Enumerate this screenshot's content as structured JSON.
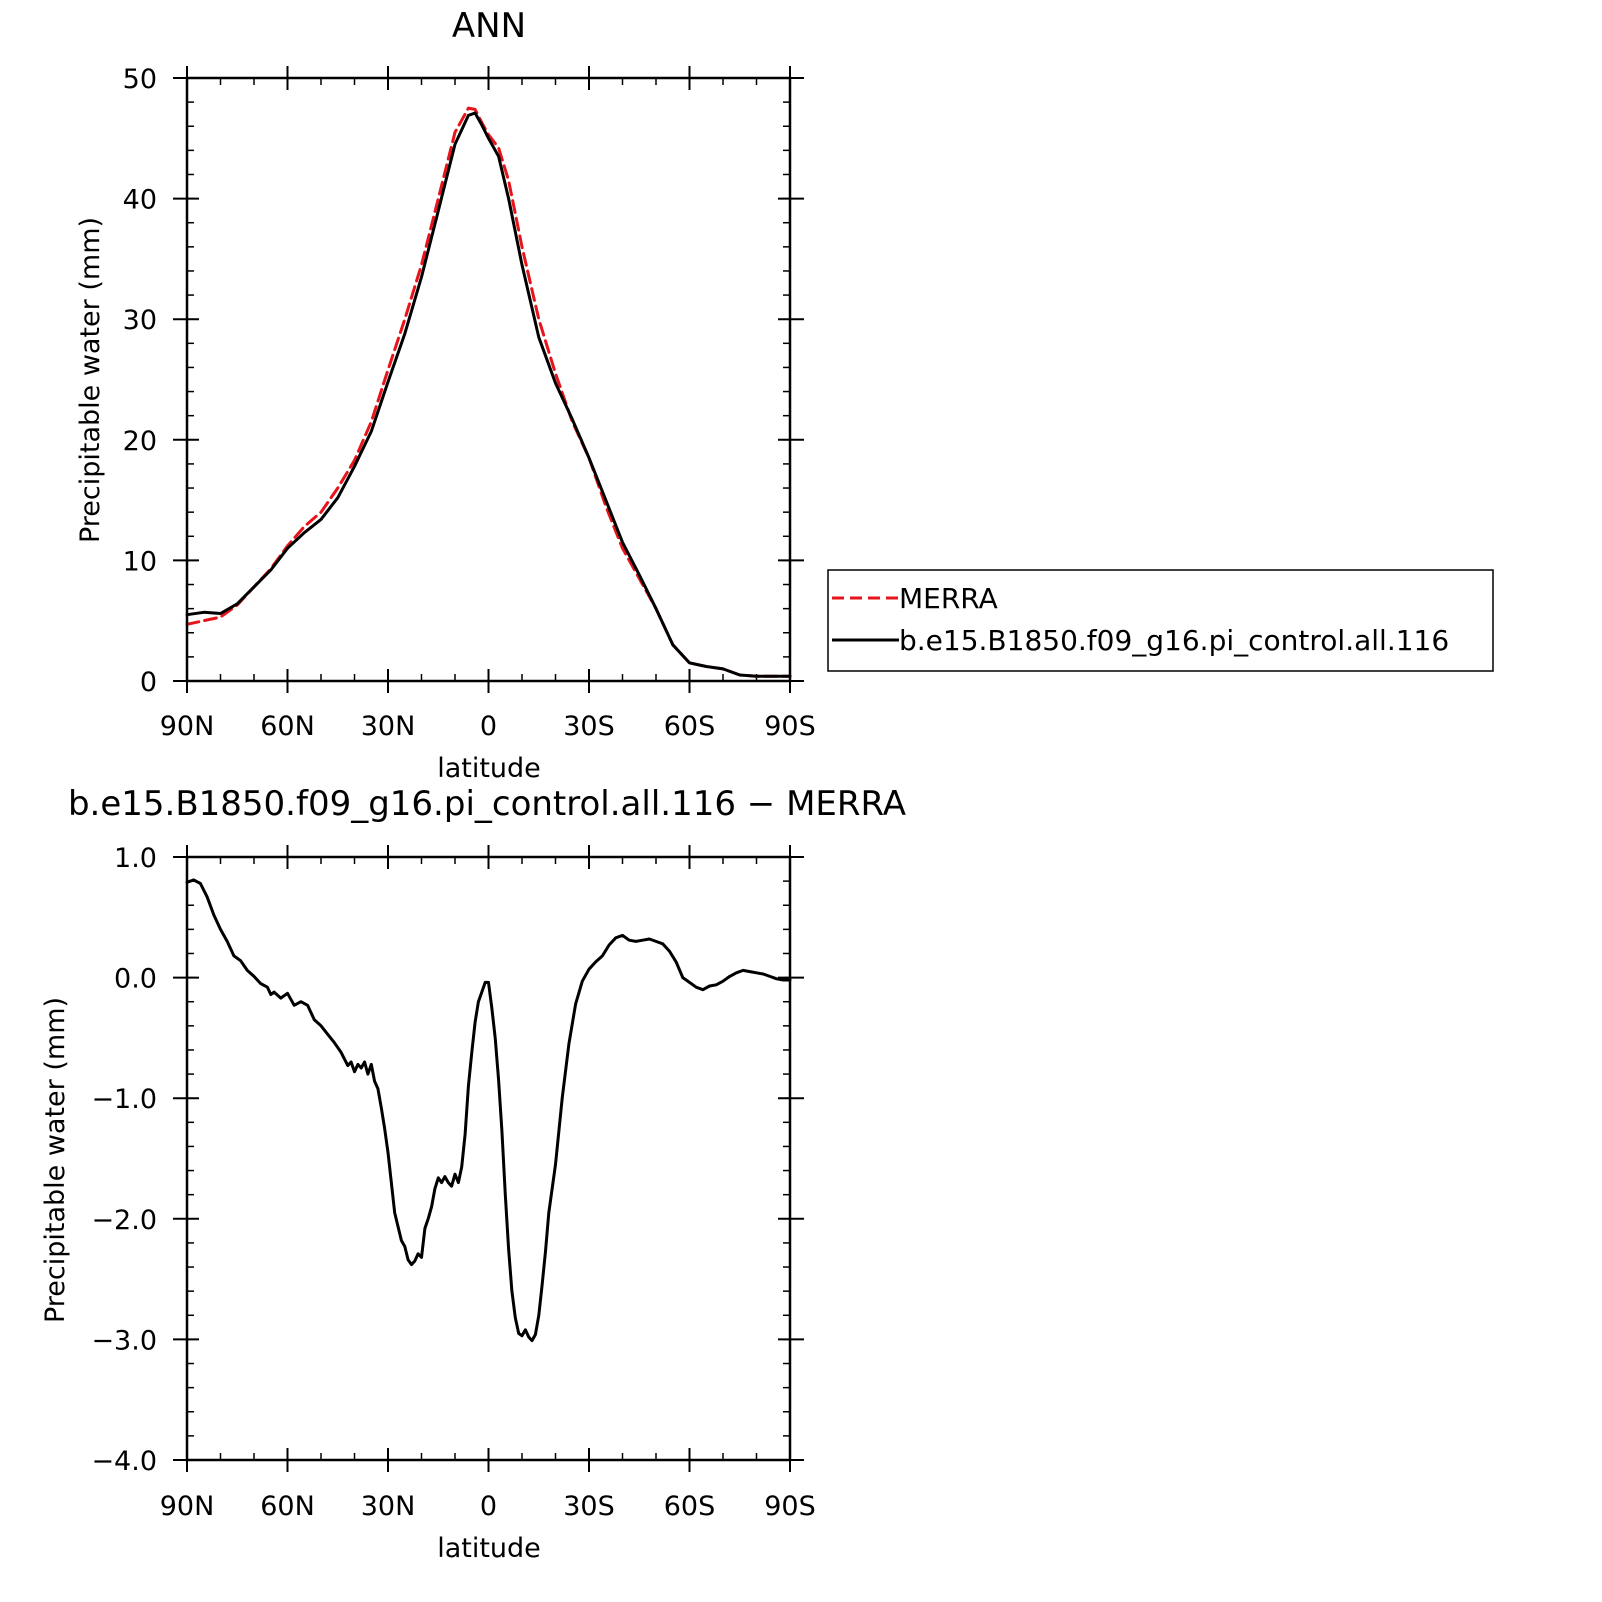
{
  "chart_data": [
    {
      "type": "line",
      "title": "ANN",
      "xlabel": "latitude",
      "ylabel": "Precipitable water (mm)",
      "xlim": [
        90,
        -90
      ],
      "ylim": [
        0,
        50
      ],
      "x_ticks": [
        90,
        60,
        30,
        0,
        -30,
        -60,
        -90
      ],
      "x_tick_labels": [
        "90N",
        "60N",
        "30N",
        "0",
        "30S",
        "60S",
        "90S"
      ],
      "y_ticks": [
        0,
        10,
        20,
        30,
        40,
        50
      ],
      "y_tick_labels": [
        "0",
        "10",
        "20",
        "30",
        "40",
        "50"
      ],
      "legend": {
        "position": "right",
        "entries": [
          "MERRA",
          "b.e15.B1850.f09_g16.pi_control.all.116"
        ]
      },
      "series": [
        {
          "name": "MERRA",
          "color": "#e8141b",
          "style": "dashed",
          "x": [
            90,
            85,
            80,
            75,
            70,
            65,
            60,
            55,
            50,
            45,
            40,
            35,
            30,
            25,
            20,
            15,
            10,
            6,
            4,
            2,
            0,
            -3,
            -6,
            -10,
            -15,
            -20,
            -25,
            -30,
            -35,
            -40,
            -45,
            -50,
            -55,
            -60,
            -65,
            -70,
            -75,
            -80,
            -85,
            -90
          ],
          "y": [
            4.7,
            5.0,
            5.3,
            6.3,
            7.8,
            9.3,
            11.2,
            12.8,
            14.0,
            16.0,
            18.3,
            21.5,
            25.8,
            30.0,
            34.5,
            40.0,
            45.5,
            47.5,
            47.4,
            46.3,
            45.3,
            44.2,
            41.5,
            36.0,
            30.0,
            25.5,
            21.5,
            18.5,
            14.5,
            11.0,
            8.5,
            6.0,
            3.0,
            1.5,
            1.2,
            1.0,
            0.5,
            0.4,
            0.4,
            0.4
          ]
        },
        {
          "name": "b.e15.B1850.f09_g16.pi_control.all.116",
          "color": "#000000",
          "style": "solid",
          "x": [
            90,
            85,
            80,
            75,
            70,
            65,
            60,
            55,
            50,
            45,
            40,
            35,
            30,
            25,
            20,
            15,
            10,
            6,
            4,
            2,
            0,
            -3,
            -6,
            -10,
            -15,
            -20,
            -25,
            -30,
            -35,
            -40,
            -45,
            -50,
            -55,
            -60,
            -65,
            -70,
            -75,
            -80,
            -85,
            -90
          ],
          "y": [
            5.5,
            5.7,
            5.6,
            6.4,
            7.8,
            9.2,
            11.0,
            12.3,
            13.4,
            15.2,
            17.8,
            20.7,
            24.8,
            28.8,
            33.5,
            39.0,
            44.5,
            46.9,
            47.1,
            46.1,
            45.0,
            43.5,
            40.0,
            34.5,
            28.5,
            24.7,
            21.7,
            18.5,
            15.0,
            11.5,
            8.8,
            6.0,
            3.0,
            1.5,
            1.2,
            1.0,
            0.5,
            0.4,
            0.4,
            0.4
          ]
        }
      ]
    },
    {
      "type": "line",
      "title": "b.e15.B1850.f09_g16.pi_control.all.116 − MERRA",
      "xlabel": "latitude",
      "ylabel": "Precipitable water (mm)",
      "xlim": [
        90,
        -90
      ],
      "ylim": [
        -4.0,
        1.0
      ],
      "x_ticks": [
        90,
        60,
        30,
        0,
        -30,
        -60,
        -90
      ],
      "x_tick_labels": [
        "90N",
        "60N",
        "30N",
        "0",
        "30S",
        "60S",
        "90S"
      ],
      "y_ticks": [
        1.0,
        0.0,
        -1.0,
        -2.0,
        -3.0,
        -4.0
      ],
      "y_tick_labels": [
        "1.0",
        "0.0",
        "−1.0",
        "−2.0",
        "−3.0",
        "−4.0"
      ],
      "series": [
        {
          "color": "#000000",
          "style": "solid",
          "x": [
            90,
            88,
            86,
            84,
            82,
            80,
            78,
            76,
            74,
            72,
            70,
            68,
            66,
            65,
            64,
            62,
            60,
            58,
            56,
            54,
            52,
            50,
            48,
            46,
            44,
            42,
            41,
            40,
            39,
            38,
            37,
            36,
            35,
            34,
            33,
            32,
            31,
            30,
            28,
            26,
            25,
            24,
            23,
            22,
            21,
            20,
            19,
            18,
            17,
            16,
            15,
            14,
            13,
            12,
            11,
            10,
            9,
            8,
            7,
            6,
            5,
            4,
            3,
            2,
            1,
            0,
            -1,
            -2,
            -3,
            -4,
            -5,
            -6,
            -7,
            -8,
            -9,
            -10,
            -11,
            -12,
            -13,
            -14,
            -15,
            -16,
            -17,
            -18,
            -20,
            -22,
            -24,
            -26,
            -28,
            -30,
            -32,
            -34,
            -36,
            -38,
            -40,
            -42,
            -44,
            -46,
            -48,
            -50,
            -52,
            -54,
            -56,
            -58,
            -60,
            -62,
            -64,
            -66,
            -68,
            -70,
            -72,
            -74,
            -76,
            -78,
            -80,
            -82,
            -84,
            -86,
            -88,
            -90
          ],
          "y": [
            0.79,
            0.81,
            0.78,
            0.67,
            0.52,
            0.4,
            0.3,
            0.18,
            0.14,
            0.06,
            0.01,
            -0.05,
            -0.08,
            -0.14,
            -0.12,
            -0.17,
            -0.13,
            -0.23,
            -0.2,
            -0.23,
            -0.35,
            -0.4,
            -0.47,
            -0.54,
            -0.62,
            -0.73,
            -0.7,
            -0.78,
            -0.72,
            -0.75,
            -0.7,
            -0.8,
            -0.72,
            -0.86,
            -0.92,
            -1.08,
            -1.25,
            -1.45,
            -1.95,
            -2.18,
            -2.23,
            -2.34,
            -2.38,
            -2.35,
            -2.29,
            -2.32,
            -2.08,
            -2.0,
            -1.9,
            -1.75,
            -1.66,
            -1.7,
            -1.65,
            -1.7,
            -1.73,
            -1.63,
            -1.7,
            -1.57,
            -1.3,
            -0.9,
            -0.62,
            -0.37,
            -0.2,
            -0.12,
            -0.04,
            -0.04,
            -0.25,
            -0.5,
            -0.85,
            -1.27,
            -1.8,
            -2.25,
            -2.6,
            -2.82,
            -2.95,
            -2.97,
            -2.92,
            -2.98,
            -3.01,
            -2.96,
            -2.8,
            -2.55,
            -2.27,
            -1.95,
            -1.55,
            -1.0,
            -0.55,
            -0.22,
            -0.03,
            0.07,
            0.13,
            0.18,
            0.27,
            0.33,
            0.35,
            0.31,
            0.3,
            0.31,
            0.32,
            0.3,
            0.28,
            0.22,
            0.13,
            0.0,
            -0.04,
            -0.08,
            -0.1,
            -0.07,
            -0.06,
            -0.03,
            0.01,
            0.04,
            0.06,
            0.05,
            0.04,
            0.03,
            0.01,
            -0.01,
            -0.02,
            -0.02
          ]
        }
      ]
    }
  ]
}
